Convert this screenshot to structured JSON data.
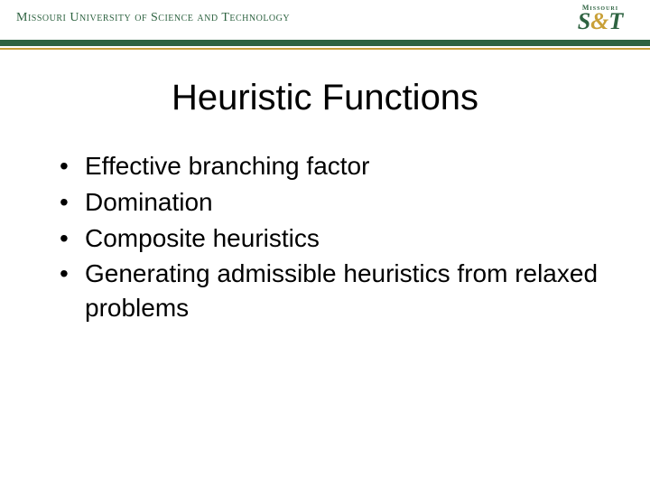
{
  "header": {
    "university_name": "Missouri University of Science and Technology",
    "logo_top": "Missouri",
    "logo_main_s1": "S",
    "logo_main_amp": "&",
    "logo_main_t": "T",
    "rule_green_color": "#2e6341",
    "rule_gold_color": "#c9a038"
  },
  "slide": {
    "title": "Heuristic Functions",
    "title_fontsize": 40,
    "title_color": "#000000",
    "bullets": [
      "Effective branching factor",
      "Domination",
      "Composite heuristics",
      "Generating admissible heuristics from relaxed problems"
    ],
    "bullet_fontsize": 28,
    "bullet_color": "#000000",
    "background_color": "#ffffff"
  }
}
